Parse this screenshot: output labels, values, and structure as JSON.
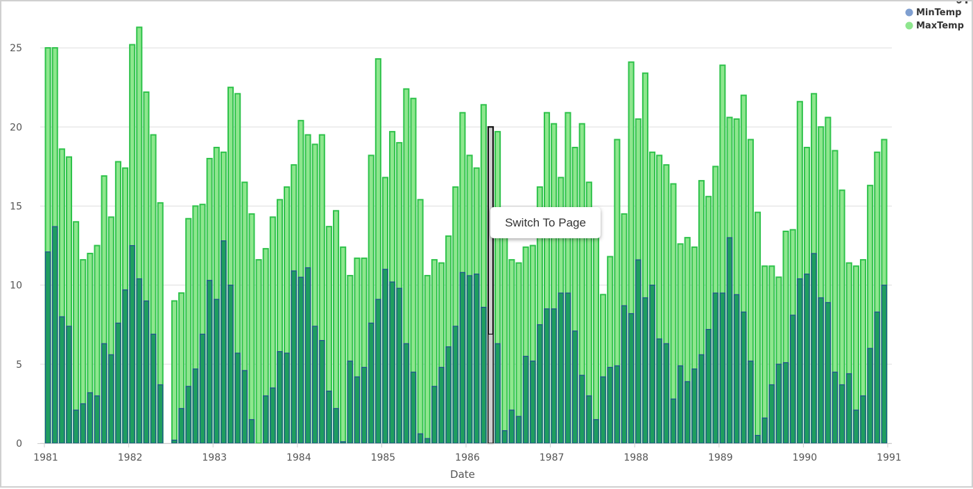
{
  "colors": {
    "min_fill": "#1f9e5f",
    "min_stroke": "#1d4f8f",
    "max_fill": "#8ee68e",
    "max_stroke": "#2ec24a",
    "highlight_fill": "#cfcfcf",
    "highlight_stroke": "#111111",
    "legend_min": "#7f9fd0",
    "legend_max": "#8ee68e",
    "grid": "#dddddd"
  },
  "tooltip": {
    "label": "Switch To Page"
  },
  "chart_data": {
    "type": "bar",
    "xlabel": "Date",
    "ylabel": "",
    "ylim": [
      0,
      27.5
    ],
    "yticks": [
      0,
      5,
      10,
      15,
      20,
      25
    ],
    "xticks": [
      "1981",
      "1982",
      "1983",
      "1984",
      "1985",
      "1986",
      "1987",
      "1988",
      "1989",
      "1990",
      "1991"
    ],
    "x_start": "1981-01",
    "x_end": "1991-01",
    "highlight_index": 63,
    "grid": true,
    "legend_position": "top-right",
    "legend": [
      "MinTemp",
      "MaxTemp"
    ],
    "series": [
      {
        "name": "MinTemp",
        "values": [
          12.1,
          13.7,
          8.0,
          7.4,
          2.1,
          2.5,
          3.2,
          3.0,
          6.3,
          5.6,
          7.6,
          9.7,
          12.5,
          10.4,
          9.0,
          6.9,
          3.7,
          0.0,
          0.2,
          2.2,
          3.6,
          4.7,
          6.9,
          10.3,
          9.1,
          12.8,
          10.0,
          5.7,
          4.6,
          1.5,
          0.0,
          3.0,
          3.5,
          5.8,
          5.7,
          10.9,
          10.5,
          11.1,
          7.4,
          6.5,
          3.3,
          2.2,
          0.1,
          5.2,
          4.2,
          4.8,
          7.6,
          9.1,
          11.0,
          10.2,
          9.8,
          6.3,
          4.5,
          0.6,
          0.3,
          3.6,
          4.8,
          6.1,
          7.4,
          10.8,
          10.6,
          10.7,
          8.6,
          6.9,
          6.3,
          0.8,
          2.1,
          1.7,
          5.5,
          5.2,
          7.5,
          8.5,
          8.5,
          9.5,
          9.5,
          7.1,
          4.3,
          3.0,
          1.5,
          4.2,
          4.8,
          4.9,
          8.7,
          8.2,
          11.6,
          9.2,
          10.0,
          6.6,
          6.3,
          2.8,
          4.9,
          3.9,
          4.7,
          5.6,
          7.2,
          9.5,
          9.5,
          13.0,
          9.4,
          8.3,
          5.2,
          0.5,
          1.6,
          3.7,
          5.0,
          5.1,
          8.1,
          10.4,
          10.7,
          12.0,
          9.2,
          8.9,
          4.5,
          3.7,
          4.4,
          2.1,
          3.0,
          6.0,
          8.3,
          10.0
        ]
      },
      {
        "name": "MaxTemp",
        "values": [
          25.0,
          25.0,
          18.6,
          18.1,
          14.0,
          11.6,
          12.0,
          12.5,
          16.9,
          14.3,
          17.8,
          17.4,
          25.2,
          26.3,
          22.2,
          19.5,
          15.2,
          0.0,
          9.0,
          9.5,
          14.2,
          15.0,
          15.1,
          18.0,
          18.7,
          18.4,
          22.5,
          22.1,
          16.5,
          14.5,
          11.6,
          12.3,
          14.3,
          15.4,
          16.2,
          17.6,
          20.4,
          19.5,
          18.9,
          19.5,
          13.7,
          14.7,
          12.4,
          10.6,
          11.7,
          11.7,
          18.2,
          24.3,
          16.8,
          19.7,
          19.0,
          22.4,
          21.8,
          15.4,
          10.6,
          11.6,
          11.4,
          13.1,
          16.2,
          20.9,
          18.2,
          17.4,
          21.4,
          20.0,
          19.7,
          13.4,
          11.6,
          11.4,
          12.4,
          12.5,
          16.2,
          20.9,
          20.2,
          16.8,
          20.9,
          18.7,
          20.2,
          16.5,
          13.0,
          9.4,
          11.8,
          19.2,
          14.5,
          24.1,
          20.5,
          23.4,
          18.4,
          18.2,
          17.6,
          16.4,
          12.6,
          13.0,
          12.4,
          16.6,
          15.6,
          17.5,
          23.9,
          20.6,
          20.5,
          22.0,
          19.2,
          14.6,
          11.2,
          11.2,
          10.5,
          13.4,
          13.5,
          21.6,
          18.7,
          22.1,
          20.0,
          20.6,
          18.5,
          16.0,
          11.4,
          11.2,
          11.6,
          16.3,
          18.4,
          19.2
        ]
      }
    ]
  }
}
